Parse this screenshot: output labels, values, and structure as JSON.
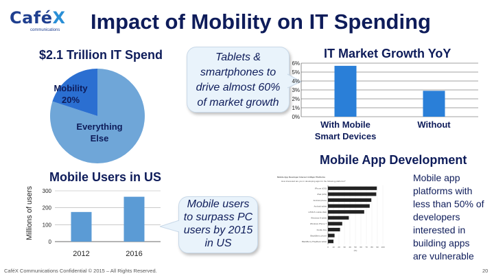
{
  "logo": {
    "word": "Café",
    "x": "X",
    "sub": "communications"
  },
  "title": "Impact of Mobility on IT Spending",
  "pie": {
    "title": "$2.1 Trillion IT Spend",
    "label_mobility": "Mobility",
    "label_mobility_pct": "20%",
    "label_else_1": "Everything",
    "label_else_2": "Else",
    "colors": {
      "mobility": "#2b6fd1",
      "else": "#6fa6d8"
    }
  },
  "callout_growth": {
    "lines": [
      "Tablets &",
      "smartphones to",
      "drive almost 60%",
      "of market growth"
    ]
  },
  "yoy": {
    "title": "IT Market Growth YoY"
  },
  "mobile_users": {
    "title": "Mobile Users in US",
    "ylabel": "Millions of users"
  },
  "callout_users": {
    "lines": [
      "Mobile users",
      "to surpass PC",
      "users by 2015",
      "in US"
    ]
  },
  "app_dev": {
    "title": "Mobile App Development",
    "side_lines": [
      "Mobile app",
      "platforms with",
      "less than 50% of",
      "developers",
      "interested in",
      "building apps",
      "are vulnerable"
    ]
  },
  "footer": {
    "left": "CaféX Communications Confidential © 2015 – All Rights Reserved.",
    "page": "20"
  },
  "chart_data": [
    {
      "type": "pie",
      "title": "$2.1 Trillion IT Spend",
      "labels": [
        "Mobility",
        "Everything Else"
      ],
      "values": [
        20,
        80
      ]
    },
    {
      "type": "bar",
      "title": "IT Market Growth YoY",
      "categories": [
        "With Mobile Smart Devices",
        "Without"
      ],
      "category_lines": [
        [
          "With Mobile",
          "Smart Devices"
        ],
        [
          "Without"
        ]
      ],
      "values": [
        5.7,
        2.9
      ],
      "ylim": [
        0,
        6
      ],
      "yticks": [
        "0%",
        "1%",
        "2%",
        "3%",
        "4%",
        "5%",
        "6%"
      ],
      "grid": true
    },
    {
      "type": "bar",
      "title": "Mobile Users in US",
      "ylabel": "Millions of users",
      "categories": [
        "2012",
        "2016"
      ],
      "values": [
        175,
        265
      ],
      "ylim": [
        0,
        300
      ],
      "yticks": [
        "0",
        "100",
        "200",
        "300"
      ],
      "grid": true
    },
    {
      "type": "bar",
      "title": "Mobile App Developer Interest in Major Platforms",
      "subtitle": "How interested are you in developing apps for the following platforms?",
      "orientation": "horizontal",
      "categories": [
        "iPhone (iOS)",
        "iPad (iOS)",
        "Android phone",
        "Android tablet",
        "HTML5 mobile Web",
        "Windows 8 tablet",
        "Windows Phone 7",
        "Kindle Fire",
        "BlackBerry phone",
        "BlackBerry PlayBook tablet"
      ],
      "values": [
        89,
        88,
        79,
        76,
        66,
        38,
        26,
        22,
        12,
        10
      ],
      "xlim": [
        0,
        100
      ],
      "xticks": [
        "0",
        "10",
        "20",
        "30",
        "40",
        "50",
        "60",
        "70",
        "80",
        "90",
        "100"
      ],
      "xlabel": "(%)"
    }
  ]
}
